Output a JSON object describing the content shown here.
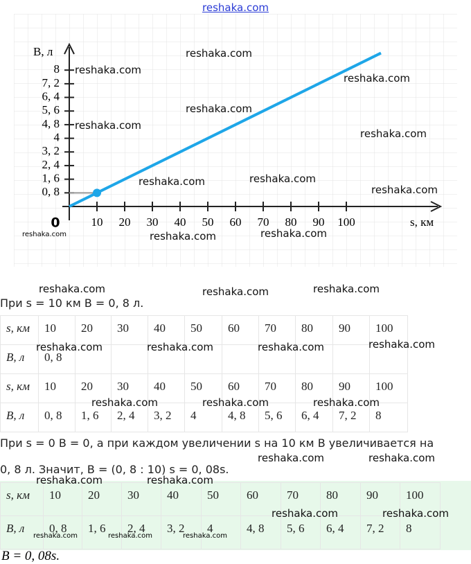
{
  "watermark": "reshaka.com",
  "chart_data": {
    "type": "line",
    "xlabel": "s, км",
    "ylabel": "B, л",
    "x": [
      0,
      10,
      112.5
    ],
    "values": [
      0,
      0.8,
      9
    ],
    "color": "#1ea6e8",
    "xlim": [
      0,
      134
    ],
    "ylim": [
      0,
      9.3
    ],
    "xticks": [
      0,
      10,
      20,
      30,
      40,
      50,
      60,
      70,
      80,
      90,
      100
    ],
    "yticks": [
      {
        "value": 0.8,
        "label": "0, 8"
      },
      {
        "value": 1.6,
        "label": "1, 6"
      },
      {
        "value": 2.4,
        "label": "2, 4"
      },
      {
        "value": 3.2,
        "label": "3, 2"
      },
      4,
      {
        "value": 4.8,
        "label": "4, 8"
      },
      {
        "value": 5.6,
        "label": "5, 6"
      },
      {
        "value": 6.4,
        "label": "6, 4"
      },
      {
        "value": 7.2,
        "label": "7, 2"
      },
      8
    ]
  },
  "text1": "При s = 10 км B = 0, 8 л.",
  "table1": {
    "rows": [
      [
        "s, км",
        "10",
        "20",
        "30",
        "40",
        "50",
        "60",
        "70",
        "80",
        "90",
        "100"
      ],
      [
        "B, л",
        "0, 8",
        null,
        null,
        null,
        null,
        null,
        null,
        null,
        null,
        null
      ]
    ]
  },
  "table2": {
    "rows": [
      [
        "s, км",
        "10",
        "20",
        "30",
        "40",
        "50",
        "60",
        "70",
        "80",
        "90",
        "100"
      ],
      [
        "B, л",
        "0, 8",
        "1, 6",
        "2, 4",
        "3, 2",
        "4",
        "4, 8",
        "5, 6",
        "6, 4",
        "7, 2",
        "8"
      ]
    ]
  },
  "text2": [
    "При s = 0 B = 0, а при каждом увеличении s на 10 км B увеличивается на",
    "0, 8 л. Значит, B = (0, 8 : 10) s = 0, 08s."
  ],
  "table3": {
    "rows": [
      [
        "s, км",
        "10",
        "20",
        "30",
        "40",
        "50",
        "60",
        "70",
        "80",
        "90",
        "100"
      ],
      [
        "B, л",
        "0, 8",
        "1, 6",
        "2, 4",
        "3, 2",
        "4",
        "4, 8",
        "5, 6",
        "6, 4",
        "7, 2",
        "8"
      ]
    ]
  },
  "answer": "B = 0, 08s."
}
